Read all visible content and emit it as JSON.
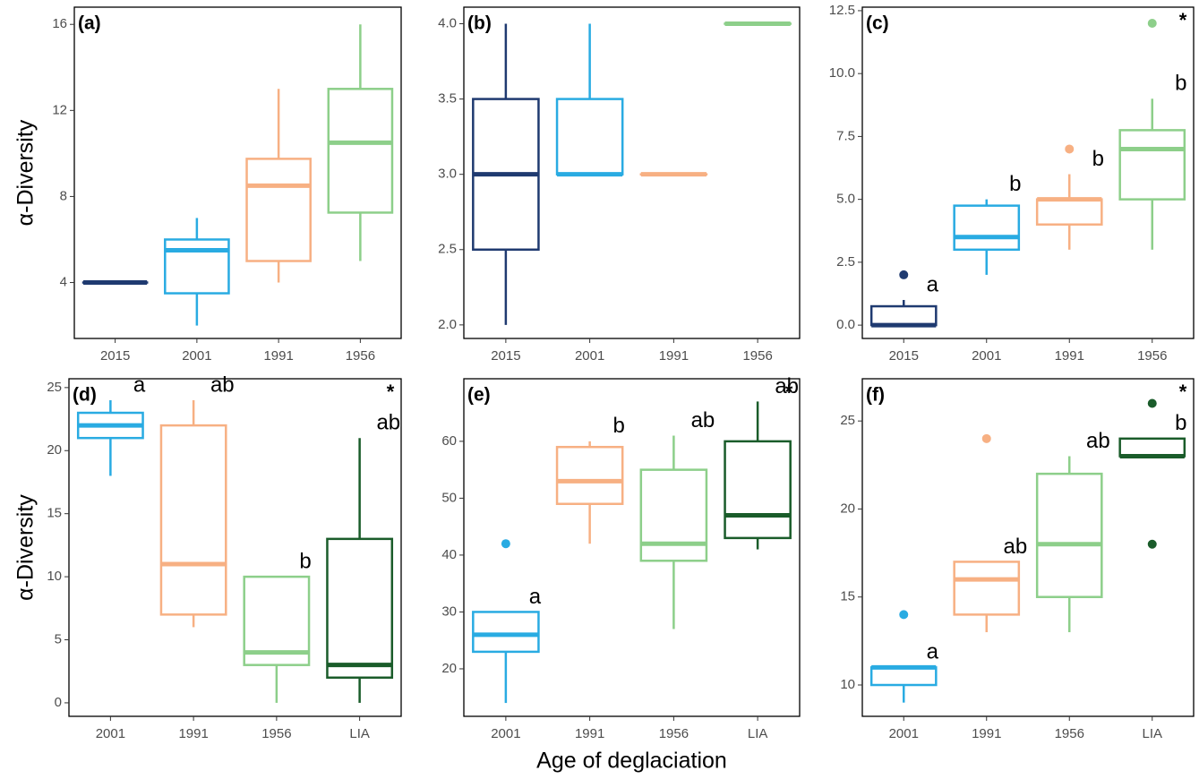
{
  "chart_data": [
    {
      "type": "box",
      "label": "(a)",
      "ylabel": "α-Diversity",
      "categories": [
        "2015",
        "2001",
        "1991",
        "1956"
      ],
      "colors": [
        "#1f3a70",
        "#29abe2",
        "#f7b083",
        "#8dcf8a"
      ],
      "min": [
        4,
        2,
        4,
        5
      ],
      "q1": [
        4,
        3.5,
        5,
        7.25
      ],
      "median": [
        4,
        5.5,
        8.5,
        10.5
      ],
      "q3": [
        4,
        6,
        9.75,
        13
      ],
      "max": [
        4,
        7,
        13,
        16
      ],
      "outliers": [
        [],
        [],
        [],
        []
      ],
      "ylim": [
        1.4,
        16.8
      ],
      "yticks": [
        4,
        8,
        12,
        16
      ]
    },
    {
      "type": "box",
      "label": "(b)",
      "categories": [
        "2015",
        "2001",
        "1991",
        "1956"
      ],
      "colors": [
        "#1f3a70",
        "#29abe2",
        "#f7b083",
        "#8dcf8a"
      ],
      "min": [
        2,
        3,
        3,
        4
      ],
      "q1": [
        2.5,
        3,
        3,
        4
      ],
      "median": [
        3,
        3,
        3,
        4
      ],
      "q3": [
        3.5,
        3.5,
        3,
        4
      ],
      "max": [
        4,
        4,
        3,
        4
      ],
      "outliers": [
        [],
        [],
        [],
        []
      ],
      "ylim": [
        1.91,
        4.11
      ],
      "yticks": [
        {
          "value": 2,
          "label": "2.0"
        },
        2.5,
        {
          "value": 3,
          "label": "3.0"
        },
        3.5,
        {
          "value": 4,
          "label": "4.0"
        }
      ]
    },
    {
      "type": "box",
      "label": "(c)",
      "asterisk": "*",
      "categories": [
        "2015",
        "2001",
        "1991",
        "1956"
      ],
      "colors": [
        "#1f3a70",
        "#29abe2",
        "#f7b083",
        "#8dcf8a"
      ],
      "min": [
        0,
        2,
        3,
        3
      ],
      "q1": [
        0,
        3,
        4,
        5
      ],
      "median": [
        0,
        3.5,
        5,
        7
      ],
      "q3": [
        0.75,
        4.75,
        5,
        7.75
      ],
      "max": [
        1,
        5,
        6,
        9
      ],
      "outliers": [
        [
          2
        ],
        [],
        [
          7
        ],
        [
          12
        ]
      ],
      "letters": [
        "a",
        "b",
        "b",
        "b"
      ],
      "ylim": [
        -0.53,
        12.64
      ],
      "yticks": [
        {
          "value": 0,
          "label": "0.0"
        },
        2.5,
        {
          "value": 5,
          "label": "5.0"
        },
        7.5,
        {
          "value": 10,
          "label": "10.0"
        },
        12.5
      ]
    },
    {
      "type": "box",
      "label": "(d)",
      "ylabel": "α-Diversity",
      "asterisk": "*",
      "categories": [
        "2001",
        "1991",
        "1956",
        "LIA"
      ],
      "colors": [
        "#29abe2",
        "#f7b083",
        "#8dcf8a",
        "#1a5c2a"
      ],
      "min": [
        18,
        6,
        0,
        0
      ],
      "q1": [
        21,
        7,
        3,
        2
      ],
      "median": [
        22,
        11,
        4,
        3
      ],
      "q3": [
        23,
        22,
        10,
        13
      ],
      "max": [
        24,
        24,
        10,
        21
      ],
      "outliers": [
        [],
        [],
        [],
        []
      ],
      "letters": [
        "a",
        "ab",
        "b",
        "ab"
      ],
      "ylim": [
        -1.07,
        25.7
      ],
      "yticks": [
        0,
        5,
        10,
        15,
        20,
        25
      ]
    },
    {
      "type": "box",
      "label": "(e)",
      "asterisk": "*",
      "xlabel": "Age of deglaciation",
      "categories": [
        "2001",
        "1991",
        "1956",
        "LIA"
      ],
      "colors": [
        "#29abe2",
        "#f7b083",
        "#8dcf8a",
        "#1a5c2a"
      ],
      "min": [
        14,
        42,
        27,
        41
      ],
      "q1": [
        23,
        49,
        39,
        43
      ],
      "median": [
        26,
        53,
        42,
        47
      ],
      "q3": [
        30,
        59,
        55,
        60
      ],
      "max": [
        30,
        60,
        61,
        67
      ],
      "outliers": [
        [
          42
        ],
        [],
        [],
        []
      ],
      "letters": [
        "a",
        "b",
        "ab",
        "ab"
      ],
      "ylim": [
        11.65,
        71.0
      ],
      "yticks": [
        20,
        30,
        40,
        50,
        60
      ]
    },
    {
      "type": "box",
      "label": "(f)",
      "asterisk": "*",
      "categories": [
        "2001",
        "1991",
        "1956",
        "LIA"
      ],
      "colors": [
        "#29abe2",
        "#f7b083",
        "#8dcf8a",
        "#1a5c2a"
      ],
      "min": [
        9,
        13,
        13,
        23
      ],
      "q1": [
        10,
        14,
        15,
        23
      ],
      "median": [
        11,
        16,
        18,
        23
      ],
      "q3": [
        11,
        17,
        22,
        24
      ],
      "max": [
        11,
        17,
        23,
        24
      ],
      "outliers": [
        [
          14
        ],
        [
          24
        ],
        [],
        [
          18,
          26
        ]
      ],
      "letters": [
        "a",
        "ab",
        "ab",
        "b"
      ],
      "ylim": [
        8.22,
        27.4
      ],
      "yticks": [
        10,
        15,
        20,
        25
      ]
    }
  ]
}
